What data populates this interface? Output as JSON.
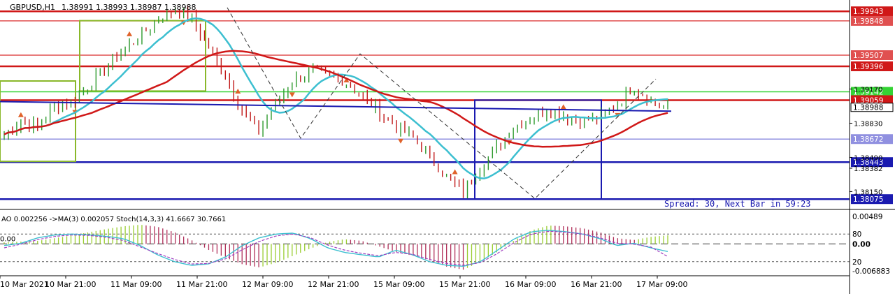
{
  "header": {
    "symbol": "GBPUSD,H1",
    "ohlc": "1.38991 1.38993 1.38987 1.38988"
  },
  "status_text": "Spread: 30, Next Bar in 59:23",
  "indicator_header": "AO 0.002256 ->MA(3) 0.002057 Stoch(14,3,3) 41.6667 30.7661",
  "colors": {
    "bull_candle": "#2e9a2e",
    "bear_candle": "#c01818",
    "cyan_ma": "#3cbfd0",
    "red_ma": "#d01818",
    "blue_line": "#1a1ab0",
    "ao_up": "#9acd32",
    "ao_down": "#b0305a",
    "fractal": "#e0622a"
  },
  "chart_data": [
    {
      "type": "candlestick",
      "title": "GBPUSD,H1",
      "ylim": [
        1.38,
        1.4
      ],
      "x": [
        "10 Mar 2021",
        "10 Mar 21:00",
        "11 Mar 09:00",
        "11 Mar 21:00",
        "12 Mar 09:00",
        "12 Mar 21:00",
        "15 Mar 09:00",
        "15 Mar 21:00",
        "16 Mar 09:00",
        "16 Mar 21:00",
        "17 Mar 09:00"
      ],
      "close_path": [
        1.3872,
        1.3885,
        1.388,
        1.39,
        1.3905,
        1.392,
        1.394,
        1.3955,
        1.397,
        1.3985,
        1.3995,
        1.3988,
        1.396,
        1.393,
        1.3895,
        1.3875,
        1.3905,
        1.3925,
        1.3935,
        1.393,
        1.3925,
        1.391,
        1.3895,
        1.388,
        1.387,
        1.385,
        1.383,
        1.3815,
        1.384,
        1.386,
        1.388,
        1.389,
        1.3895,
        1.389,
        1.3885,
        1.389,
        1.39,
        1.392,
        1.3905,
        1.3899
      ],
      "price_levels": [
        {
          "value": "1.39943",
          "color": "#d01818"
        },
        {
          "value": "1.39848",
          "color": "#e05050"
        },
        {
          "value": "1.39507",
          "color": "#e05050"
        },
        {
          "value": "1.39396",
          "color": "#d01818"
        },
        {
          "value": "1.39142",
          "color": "#34d334"
        },
        {
          "value": "1.39059",
          "color": "#d01818"
        },
        {
          "value": "1.38672",
          "color": "#9090e0"
        },
        {
          "value": "1.38443",
          "color": "#1a1ab0"
        },
        {
          "value": "1.38075",
          "color": "#1a1ab0"
        }
      ],
      "current_price": "1.38988",
      "axis_ticks": [
        "1.39170",
        "1.38830",
        "1.38490",
        "1.38382",
        "1.38150"
      ]
    },
    {
      "type": "histogram",
      "title": "AO 0.002256 ->MA(3) 0.002057 Stoch(14,3,3) 41.6667 30.7661",
      "ao_values": [
        0.0004,
        0.0006,
        0.0008,
        0.0015,
        0.0022,
        0.003,
        0.0038,
        0.0045,
        0.0049,
        0.0044,
        0.003,
        0.001,
        -0.0015,
        -0.0035,
        -0.0052,
        -0.006,
        -0.0048,
        -0.003,
        -0.0012,
        0.0005,
        0.0012,
        0.0008,
        -0.0006,
        -0.002,
        -0.003,
        -0.0042,
        -0.0058,
        -0.0066,
        -0.0045,
        -0.002,
        0.001,
        0.0035,
        0.0047,
        0.0045,
        0.004,
        0.003,
        0.0015,
        0.001,
        0.0018,
        0.0022
      ],
      "stoch_k": [
        55,
        60,
        72,
        78,
        80,
        78,
        75,
        70,
        55,
        35,
        20,
        12,
        15,
        30,
        55,
        72,
        80,
        82,
        70,
        50,
        40,
        35,
        30,
        45,
        35,
        20,
        12,
        10,
        20,
        45,
        70,
        85,
        88,
        85,
        80,
        70,
        55,
        60,
        50,
        42
      ],
      "stoch_d": [
        50,
        58,
        68,
        75,
        78,
        77,
        73,
        66,
        52,
        38,
        25,
        15,
        16,
        26,
        46,
        64,
        76,
        80,
        72,
        56,
        45,
        38,
        33,
        40,
        36,
        25,
        16,
        12,
        18,
        38,
        62,
        80,
        86,
        84,
        80,
        72,
        60,
        58,
        52,
        31
      ],
      "axis_ticks": [
        "0.00489",
        "80",
        "0.00",
        "20",
        "-0.006883"
      ]
    }
  ]
}
